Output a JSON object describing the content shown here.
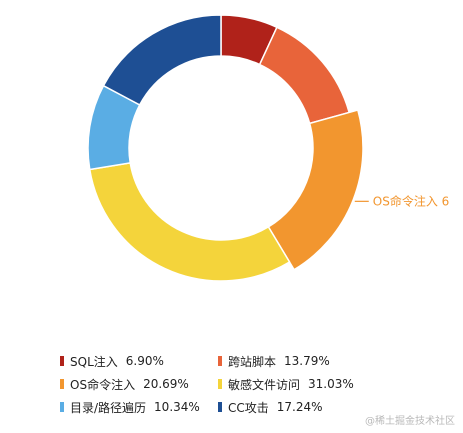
{
  "chart_data": {
    "type": "pie",
    "donut": true,
    "highlighted_index": 2,
    "callout_text": "OS命令注入 6",
    "slices": [
      {
        "label": "SQL注入",
        "percent": 6.9,
        "percent_label": "6.90%",
        "color": "#b0221a"
      },
      {
        "label": "跨站脚本",
        "percent": 13.79,
        "percent_label": "13.79%",
        "color": "#e8643a"
      },
      {
        "label": "OS命令注入",
        "percent": 20.69,
        "percent_label": "20.69%",
        "color": "#f2962f"
      },
      {
        "label": "敏感文件访问",
        "percent": 31.03,
        "percent_label": "31.03%",
        "color": "#f4d43b"
      },
      {
        "label": "目录/路径遍历",
        "percent": 10.34,
        "percent_label": "10.34%",
        "color": "#5aade4"
      },
      {
        "label": "CC攻击",
        "percent": 17.24,
        "percent_label": "17.24%",
        "color": "#1e4f94"
      }
    ],
    "legend_placement": "bottom"
  },
  "watermark": "@稀土掘金技术社区"
}
